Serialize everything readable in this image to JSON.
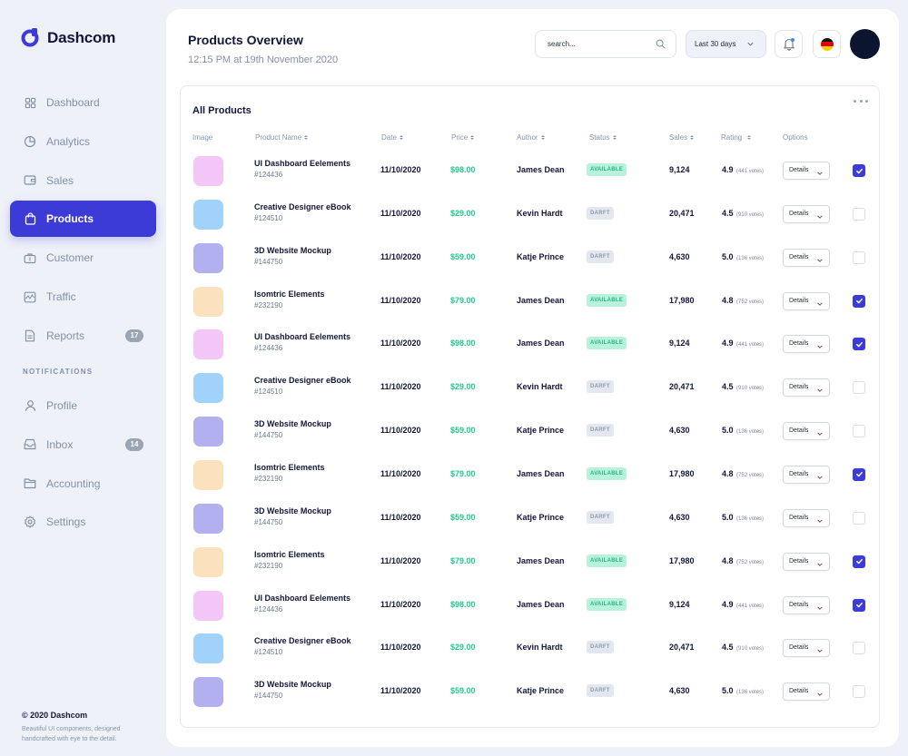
{
  "brand": {
    "name": "Dashcom",
    "color": "#3d3bd8"
  },
  "nav": {
    "items": [
      {
        "label": "Dashboard",
        "icon": "grid-icon"
      },
      {
        "label": "Analytics",
        "icon": "pie-chart-icon"
      },
      {
        "label": "Sales",
        "icon": "wallet-icon"
      },
      {
        "label": "Products",
        "icon": "shopping-bag-icon",
        "active": true
      },
      {
        "label": "Customer",
        "icon": "briefcase-icon"
      },
      {
        "label": "Traffic",
        "icon": "activity-icon"
      },
      {
        "label": "Reports",
        "icon": "document-icon",
        "badge": "17"
      }
    ],
    "section_label": "NOTIFICATIONS",
    "section_items": [
      {
        "label": "Profile",
        "icon": "user-icon"
      },
      {
        "label": "Inbox",
        "icon": "inbox-icon",
        "badge": "14"
      },
      {
        "label": "Accounting",
        "icon": "folder-icon"
      },
      {
        "label": "Settings",
        "icon": "gear-icon"
      }
    ]
  },
  "footer": {
    "copyright": "© 2020 Dashcom",
    "tagline": "Beautiful UI components, designed handcrafted with eye to the detail."
  },
  "header": {
    "title": "Products Overview",
    "subtitle": "12:15 PM at 19th November 2020",
    "search_placeholder": "search...",
    "period": "Last 30 days",
    "flag": "germany-flag-icon"
  },
  "table": {
    "title": "All Products",
    "columns": {
      "image": "Image",
      "name": "Product Name",
      "date": "Date",
      "price": "Price",
      "author": "Author",
      "status": "Status",
      "sales": "Sales",
      "rating": "Rating",
      "options": "Options"
    },
    "details_label": "Details",
    "rows": [
      {
        "name": "UI Dashboard Eelements",
        "id": "#124436",
        "date": "11/10/2020",
        "price": "$98.00",
        "author": "James Dean",
        "status": "AVAILABLE",
        "sales": "9,124",
        "rating": "4.9",
        "votes": "(441 votes)",
        "color": "#f4c6f7",
        "checked": true
      },
      {
        "name": "Creative Designer eBook",
        "id": "#124510",
        "date": "11/10/2020",
        "price": "$29.00",
        "author": "Kevin Hardt",
        "status": "DARFT",
        "sales": "20,471",
        "rating": "4.5",
        "votes": "(910 votes)",
        "color": "#a0d2fb",
        "checked": false
      },
      {
        "name": "3D Website Mockup",
        "id": "#144750",
        "date": "11/10/2020",
        "price": "$59.00",
        "author": "Katje Prince",
        "status": "DARFT",
        "sales": "4,630",
        "rating": "5.0",
        "votes": "(136 votes)",
        "color": "#b2b0ee",
        "checked": false
      },
      {
        "name": "Isomtric Elements",
        "id": "#232190",
        "date": "11/10/2020",
        "price": "$79.00",
        "author": "James Dean",
        "status": "AVAILABLE",
        "sales": "17,980",
        "rating": "4.8",
        "votes": "(752 votes)",
        "color": "#fbe1bd",
        "checked": true
      },
      {
        "name": "UI Dashboard Eelements",
        "id": "#124436",
        "date": "11/10/2020",
        "price": "$98.00",
        "author": "James Dean",
        "status": "AVAILABLE",
        "sales": "9,124",
        "rating": "4.9",
        "votes": "(441 votes)",
        "color": "#f4c6f7",
        "checked": true
      },
      {
        "name": "Creative Designer eBook",
        "id": "#124510",
        "date": "11/10/2020",
        "price": "$29.00",
        "author": "Kevin Hardt",
        "status": "DARFT",
        "sales": "20,471",
        "rating": "4.5",
        "votes": "(910 votes)",
        "color": "#a0d2fb",
        "checked": false
      },
      {
        "name": "3D Website Mockup",
        "id": "#144750",
        "date": "11/10/2020",
        "price": "$59.00",
        "author": "Katje Prince",
        "status": "DARFT",
        "sales": "4,630",
        "rating": "5.0",
        "votes": "(136 votes)",
        "color": "#b2b0ee",
        "checked": false
      },
      {
        "name": "Isomtric Elements",
        "id": "#232190",
        "date": "11/10/2020",
        "price": "$79.00",
        "author": "James Dean",
        "status": "AVAILABLE",
        "sales": "17,980",
        "rating": "4.8",
        "votes": "(752 votes)",
        "color": "#fbe1bd",
        "checked": true
      },
      {
        "name": "3D Website Mockup",
        "id": "#144750",
        "date": "11/10/2020",
        "price": "$59.00",
        "author": "Katje Prince",
        "status": "DARFT",
        "sales": "4,630",
        "rating": "5.0",
        "votes": "(136 votes)",
        "color": "#b2b0ee",
        "checked": false
      },
      {
        "name": "Isomtric Elements",
        "id": "#232190",
        "date": "11/10/2020",
        "price": "$79.00",
        "author": "James Dean",
        "status": "AVAILABLE",
        "sales": "17,980",
        "rating": "4.8",
        "votes": "(752 votes)",
        "color": "#fbe1bd",
        "checked": true
      },
      {
        "name": "UI Dashboard Eelements",
        "id": "#124436",
        "date": "11/10/2020",
        "price": "$98.00",
        "author": "James Dean",
        "status": "AVAILABLE",
        "sales": "9,124",
        "rating": "4.9",
        "votes": "(441 votes)",
        "color": "#f4c6f7",
        "checked": true
      },
      {
        "name": "Creative Designer eBook",
        "id": "#124510",
        "date": "11/10/2020",
        "price": "$29.00",
        "author": "Kevin Hardt",
        "status": "DARFT",
        "sales": "20,471",
        "rating": "4.5",
        "votes": "(910 votes)",
        "color": "#a0d2fb",
        "checked": false
      },
      {
        "name": "3D Website Mockup",
        "id": "#144750",
        "date": "11/10/2020",
        "price": "$59.00",
        "author": "Katje Prince",
        "status": "DARFT",
        "sales": "4,630",
        "rating": "5.0",
        "votes": "(136 votes)",
        "color": "#b2b0ee",
        "checked": false
      }
    ]
  }
}
